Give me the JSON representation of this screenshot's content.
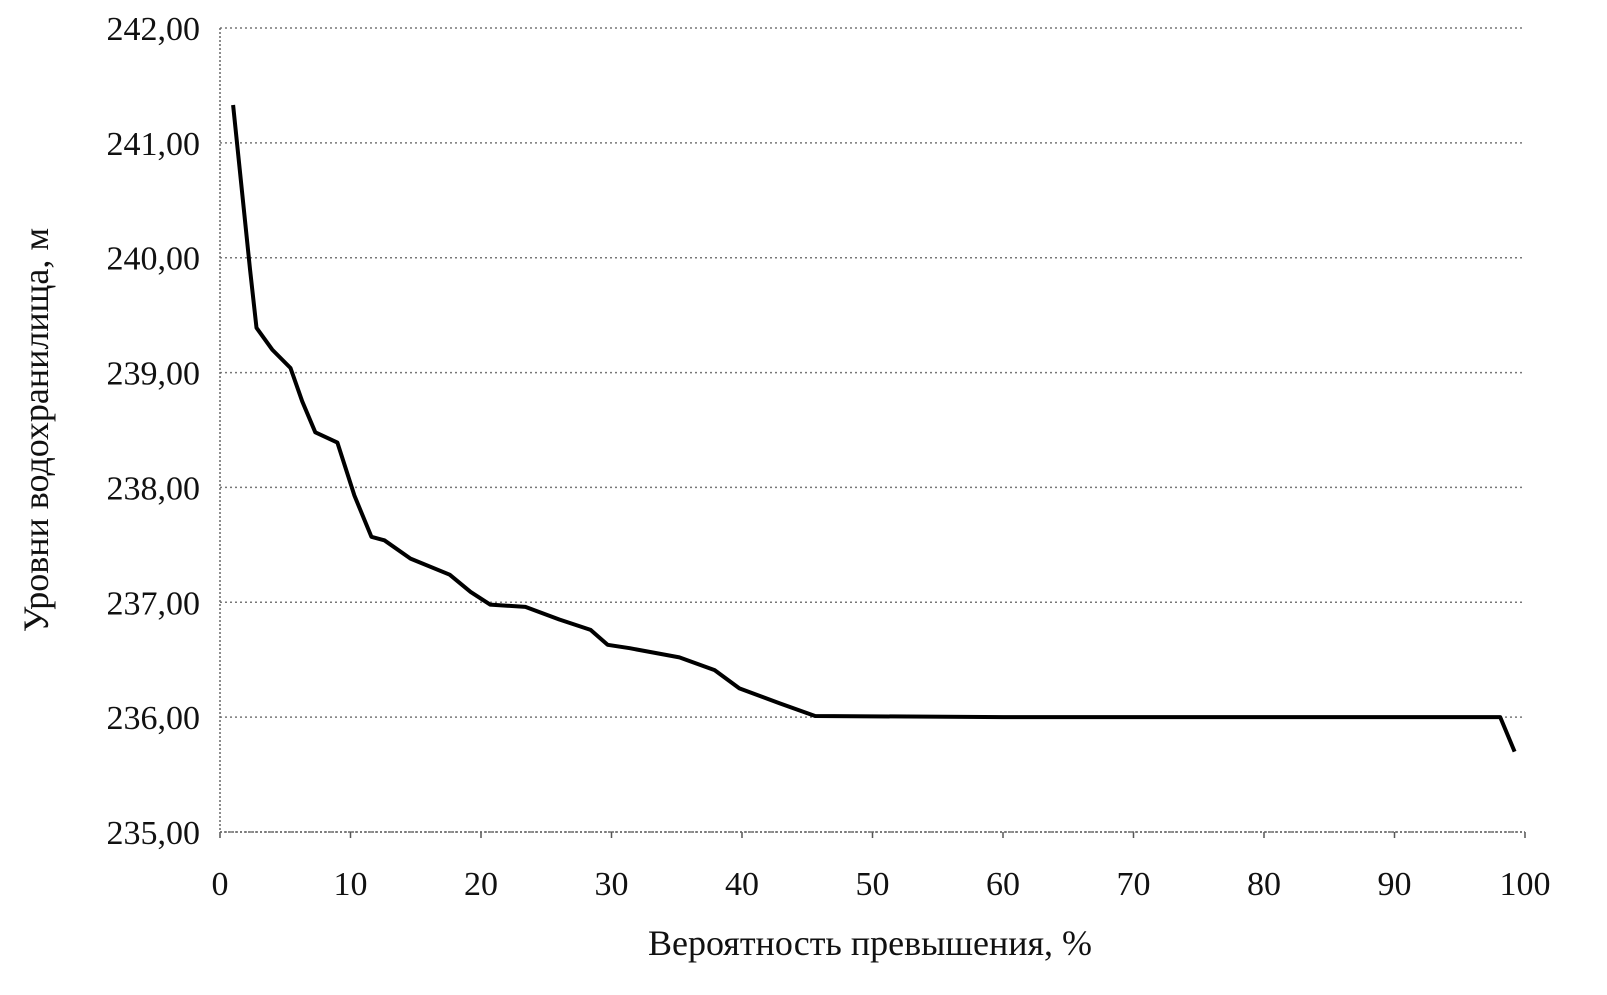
{
  "chart_data": {
    "type": "line",
    "title": "",
    "xlabel": "Вероятность превышения, %",
    "ylabel": "Уровни водохранилища, м",
    "xlim": [
      0,
      100
    ],
    "ylim": [
      235,
      242
    ],
    "x_ticks": [
      "0",
      "10",
      "20",
      "30",
      "40",
      "50",
      "60",
      "70",
      "80",
      "90",
      "100"
    ],
    "y_ticks": [
      "235,00",
      "236,00",
      "237,00",
      "238,00",
      "239,00",
      "240,00",
      "241,00",
      "242,00"
    ],
    "grid": "horizontal dotted",
    "legend": "none",
    "line_color": "#000000",
    "series": [
      {
        "x": [
          1,
          2.3,
          2.8,
          4,
          5.4,
          6.3,
          7.3,
          9,
          10.3,
          11.6,
          12.6,
          14.6,
          17.6,
          19.2,
          20.7,
          23.4,
          26,
          28.4,
          29.7,
          31.4,
          35.2,
          37.9,
          39.8,
          42.9,
          45.6,
          60,
          80,
          98.1,
          99.2
        ],
        "y": [
          241.33,
          239.9,
          239.39,
          239.2,
          239.04,
          238.75,
          238.48,
          238.39,
          237.93,
          237.57,
          237.54,
          237.38,
          237.24,
          237.09,
          236.98,
          236.96,
          236.85,
          236.76,
          236.63,
          236.6,
          236.52,
          236.41,
          236.25,
          236.12,
          236.01,
          236.0,
          236.0,
          236.0,
          235.7
        ]
      }
    ]
  }
}
